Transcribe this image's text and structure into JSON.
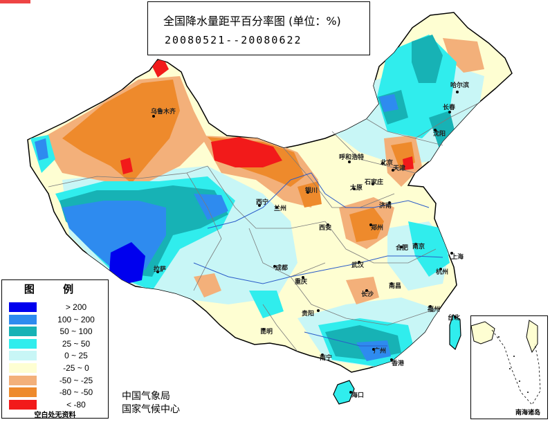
{
  "title": "全国降水量距平百分率图 (单位：%)",
  "period": "20080521--20080622",
  "legend": {
    "title": "图 例",
    "items": [
      {
        "range": "> 200",
        "color": "#0000ee"
      },
      {
        "range": "100 ~ 200",
        "color": "#2e8bef"
      },
      {
        "range": "50 ~ 100",
        "color": "#17b2b5"
      },
      {
        "range": "25 ~ 50",
        "color": "#30eded"
      },
      {
        "range": "0 ~ 25",
        "color": "#c8f6f6"
      },
      {
        "range": "-25 ~ 0",
        "color": "#fefed2"
      },
      {
        "range": "-50 ~ -25",
        "color": "#f3b07a"
      },
      {
        "range": "-80 ~ -50",
        "color": "#ee8a2c"
      },
      {
        "range": "< -80",
        "color": "#f21a1a"
      }
    ],
    "note": "空白处无资料"
  },
  "credits": {
    "line1": "中国气象局",
    "line2": "国家气候中心"
  },
  "inset": {
    "label": "南海诸岛"
  },
  "cities": [
    {
      "name": "乌鲁木齐"
    },
    {
      "name": "哈尔滨"
    },
    {
      "name": "长春"
    },
    {
      "name": "沈阳"
    },
    {
      "name": "呼和浩特"
    },
    {
      "name": "北京"
    },
    {
      "name": "天津"
    },
    {
      "name": "太原"
    },
    {
      "name": "石家庄"
    },
    {
      "name": "银川"
    },
    {
      "name": "西宁"
    },
    {
      "name": "兰州"
    },
    {
      "name": "济南"
    },
    {
      "name": "郑州"
    },
    {
      "name": "西安"
    },
    {
      "name": "拉萨"
    },
    {
      "name": "成都"
    },
    {
      "name": "重庆"
    },
    {
      "name": "武汉"
    },
    {
      "name": "合肥"
    },
    {
      "name": "南京"
    },
    {
      "name": "上海"
    },
    {
      "name": "杭州"
    },
    {
      "name": "南昌"
    },
    {
      "name": "长沙"
    },
    {
      "name": "福州"
    },
    {
      "name": "贵阳"
    },
    {
      "name": "昆明"
    },
    {
      "name": "南宁"
    },
    {
      "name": "广州"
    },
    {
      "name": "香港"
    },
    {
      "name": "海口"
    },
    {
      "name": "台北"
    }
  ]
}
